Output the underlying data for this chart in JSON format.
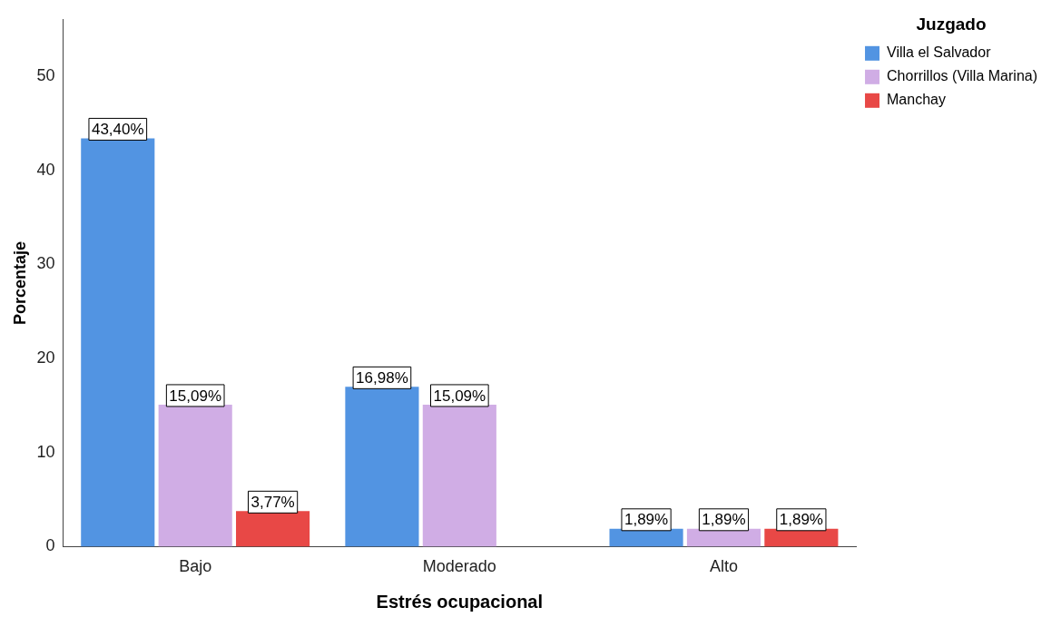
{
  "chart_data": {
    "type": "bar",
    "xlabel": "Estrés ocupacional",
    "ylabel": "Porcentaje",
    "legend_title": "Juzgado",
    "categories": [
      "Bajo",
      "Moderado",
      "Alto"
    ],
    "series": [
      {
        "name": "Villa el Salvador",
        "color": "#5294e2",
        "values": [
          43.4,
          16.98,
          1.89
        ],
        "value_labels": [
          "43,40%",
          "16,98%",
          "1,89%"
        ]
      },
      {
        "name": "Chorrillos (Villa Marina)",
        "color": "#d0ade5",
        "values": [
          15.09,
          15.09,
          1.89
        ],
        "value_labels": [
          "15,09%",
          "15,09%",
          "1,89%"
        ]
      },
      {
        "name": "Manchay",
        "color": "#e84846",
        "values": [
          3.77,
          null,
          1.89
        ],
        "value_labels": [
          "3,77%",
          null,
          "1,89%"
        ]
      }
    ],
    "ylim": [
      0,
      56
    ],
    "yticks": [
      0,
      10,
      20,
      30,
      40,
      50
    ],
    "grid": false,
    "legend": "top right"
  }
}
